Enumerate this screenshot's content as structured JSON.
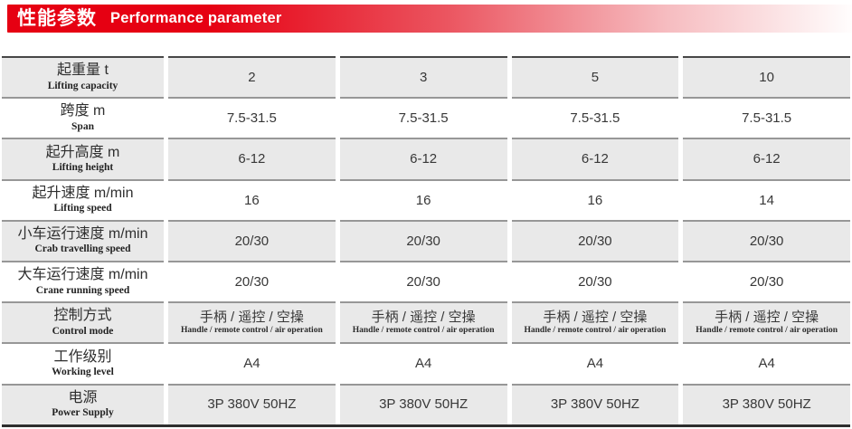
{
  "header": {
    "title_zh": "性能参数",
    "title_en": "Performance parameter",
    "accent_color": "#e60012"
  },
  "table": {
    "columns": 4,
    "rows": [
      {
        "label_zh": "起重量 t",
        "label_en": "Lifting capacity",
        "shaded": true,
        "values": [
          "2",
          "3",
          "5",
          "10"
        ]
      },
      {
        "label_zh": "跨度 m",
        "label_en": "Span",
        "shaded": false,
        "values": [
          "7.5-31.5",
          "7.5-31.5",
          "7.5-31.5",
          "7.5-31.5"
        ]
      },
      {
        "label_zh": "起升高度 m",
        "label_en": "Lifting height",
        "shaded": true,
        "values": [
          "6-12",
          "6-12",
          "6-12",
          "6-12"
        ]
      },
      {
        "label_zh": "起升速度 m/min",
        "label_en": "Lifting speed",
        "shaded": false,
        "values": [
          "16",
          "16",
          "16",
          "14"
        ]
      },
      {
        "label_zh": "小车运行速度 m/min",
        "label_en": "Crab travelling speed",
        "shaded": true,
        "values": [
          "20/30",
          "20/30",
          "20/30",
          "20/30"
        ]
      },
      {
        "label_zh": "大车运行速度 m/min",
        "label_en": "Crane running speed",
        "shaded": false,
        "values": [
          "20/30",
          "20/30",
          "20/30",
          "20/30"
        ]
      },
      {
        "label_zh": "控制方式",
        "label_en": "Control mode",
        "shaded": true,
        "values": [
          "手柄 / 遥控 / 空操",
          "手柄 / 遥控 / 空操",
          "手柄 / 遥控 / 空操",
          "手柄 / 遥控 / 空操"
        ],
        "values_sub": [
          "Handle / remote control / air operation",
          "Handle / remote control / air operation",
          "Handle / remote control / air operation",
          "Handle / remote control / air operation"
        ]
      },
      {
        "label_zh": "工作级别",
        "label_en": "Working level",
        "shaded": false,
        "values": [
          "A4",
          "A4",
          "A4",
          "A4"
        ]
      },
      {
        "label_zh": "电源",
        "label_en": "Power Supply",
        "shaded": true,
        "values": [
          "3P 380V 50HZ",
          "3P 380V 50HZ",
          "3P 380V 50HZ",
          "3P 380V 50HZ"
        ]
      }
    ]
  }
}
